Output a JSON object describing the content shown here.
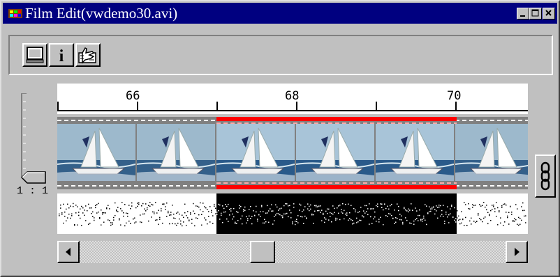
{
  "window": {
    "title": "Film Edit(vwdemo30.avi)",
    "title_bg": "#000080",
    "face": "#c0c0c0",
    "icons": {
      "app": "film-app-icon",
      "minimize": "minimize-icon",
      "maximize": "maximize-icon",
      "close": "close-icon"
    }
  },
  "toolbar": {
    "buttons": [
      {
        "name": "monitor-button",
        "icon": "monitor-icon"
      },
      {
        "name": "info-button",
        "icon": "info-icon",
        "glyph": "i"
      },
      {
        "name": "hand-button",
        "icon": "hand-icon"
      }
    ]
  },
  "zoom": {
    "label": "1 : 1"
  },
  "timeline": {
    "ruler_labels": [
      "66",
      "68",
      "70"
    ],
    "frame_count": 6,
    "selected_frames": [
      2,
      3,
      4
    ],
    "selection_color": "#ff0000"
  },
  "side": {
    "link_button_icon": "chain-link-icon"
  }
}
